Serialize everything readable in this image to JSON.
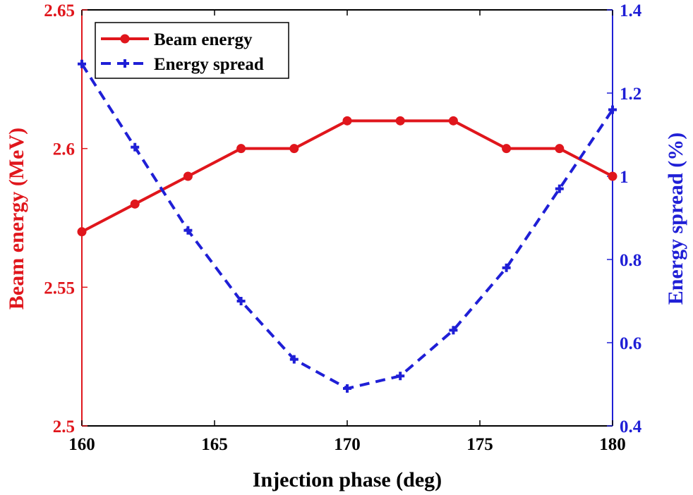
{
  "chart_data": {
    "type": "line",
    "x": [
      160,
      162,
      164,
      166,
      168,
      170,
      172,
      174,
      176,
      178,
      180
    ],
    "xlabel": "Injection phase (deg)",
    "xlim": [
      160,
      180
    ],
    "xticks": [
      160,
      165,
      170,
      175,
      180
    ],
    "xtick_labels": [
      "160",
      "165",
      "170",
      "175",
      "180"
    ],
    "grid": false,
    "legend_position": "top-left",
    "left_axis": {
      "label": "Beam energy (MeV)",
      "color": "#e0161c",
      "ylim": [
        2.5,
        2.65
      ],
      "ticks": [
        2.5,
        2.55,
        2.6,
        2.65
      ],
      "tick_labels": [
        "2.5",
        "2.55",
        "2.6",
        "2.65"
      ]
    },
    "right_axis": {
      "label": "Energy spread (%)",
      "color": "#1f1fd6",
      "ylim": [
        0.4,
        1.4
      ],
      "ticks": [
        0.4,
        0.6,
        0.8,
        1.0,
        1.2,
        1.4
      ],
      "tick_labels": [
        "0.4",
        "0.6",
        "0.8",
        "1",
        "1.2",
        "1.4"
      ]
    },
    "series": [
      {
        "name": "Beam energy",
        "axis": "left",
        "color": "#e0161c",
        "line_style": "solid",
        "marker": "circle",
        "values": [
          2.57,
          2.58,
          2.59,
          2.6,
          2.6,
          2.61,
          2.61,
          2.61,
          2.6,
          2.6,
          2.59
        ]
      },
      {
        "name": "Energy spread",
        "axis": "right",
        "color": "#1f1fd6",
        "line_style": "dashed",
        "marker": "plus",
        "values": [
          1.27,
          1.07,
          0.87,
          0.7,
          0.56,
          0.49,
          0.52,
          0.63,
          0.78,
          0.97,
          1.16
        ]
      }
    ]
  }
}
